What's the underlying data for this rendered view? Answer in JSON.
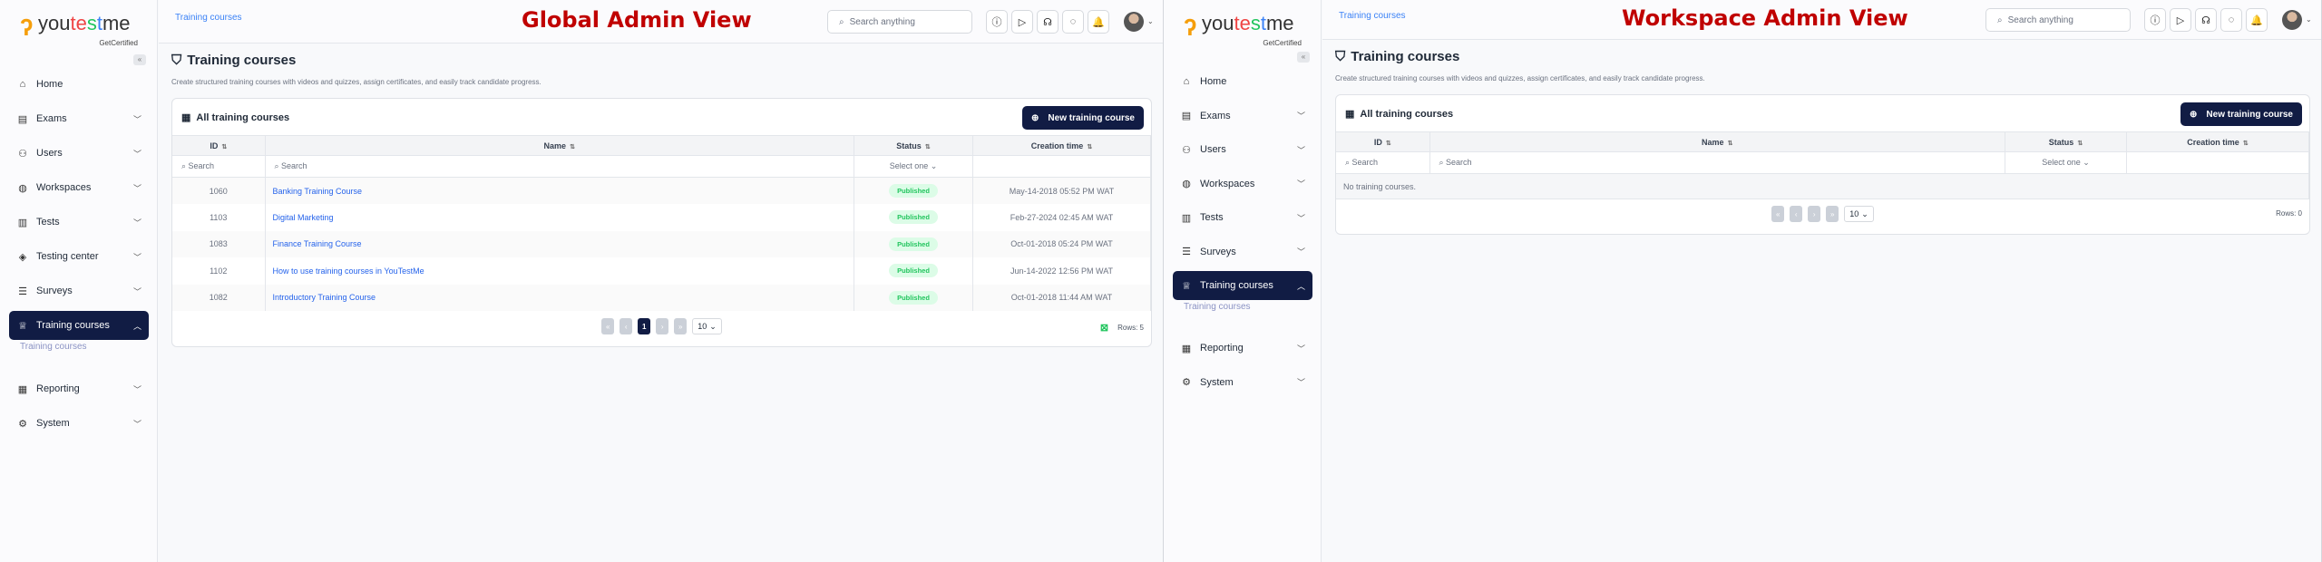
{
  "panels": [
    {
      "view_title": "Global Admin View",
      "breadcrumb": "Training courses",
      "search_placeholder": "Search anything",
      "logo": {
        "text": "youtestme",
        "tagline": "GetCertified"
      },
      "sidebar": {
        "items": [
          {
            "label": "Home",
            "icon": "home-icon",
            "glyph": "⌂",
            "chevron": ""
          },
          {
            "label": "Exams",
            "icon": "document-icon",
            "glyph": "▤",
            "chevron": "⌄"
          },
          {
            "label": "Users",
            "icon": "users-icon",
            "glyph": "⚇",
            "chevron": "⌄"
          },
          {
            "label": "Workspaces",
            "icon": "globe-icon",
            "glyph": "◍",
            "chevron": "⌄"
          },
          {
            "label": "Tests",
            "icon": "test-icon",
            "glyph": "▥",
            "chevron": "⌄"
          },
          {
            "label": "Testing center",
            "icon": "graduation-cap-icon",
            "glyph": "◈",
            "chevron": "⌄"
          },
          {
            "label": "Surveys",
            "icon": "list-icon",
            "glyph": "☰",
            "chevron": "⌄"
          },
          {
            "label": "Training courses",
            "icon": "trophy-icon",
            "glyph": "♕",
            "chevron": "⌃",
            "active": true,
            "sub": "Training courses"
          },
          {
            "label": "Reporting",
            "icon": "report-icon",
            "glyph": "▦",
            "chevron": "⌄"
          },
          {
            "label": "System",
            "icon": "gear-icon",
            "glyph": "⚙",
            "chevron": "⌄"
          }
        ]
      },
      "page_title": "Training courses",
      "description": "Create structured training courses with videos and quizzes, assign certificates, and easily track candidate progress.",
      "card_title": "All training courses",
      "new_button": "New training course",
      "columns": [
        "ID",
        "Name",
        "Status",
        "Creation time"
      ],
      "filter": {
        "search": "Search",
        "status": "Select one"
      },
      "rows": [
        {
          "id": "1060",
          "name": "Banking Training Course",
          "status": "Published",
          "created": "May-14-2018 05:52 PM WAT"
        },
        {
          "id": "1103",
          "name": "Digital Marketing",
          "status": "Published",
          "created": "Feb-27-2024 02:45 AM WAT"
        },
        {
          "id": "1083",
          "name": "Finance Training Course",
          "status": "Published",
          "created": "Oct-01-2018 05:24 PM WAT"
        },
        {
          "id": "1102",
          "name": "How to use training courses in YouTestMe",
          "status": "Published",
          "created": "Jun-14-2022 12:56 PM WAT"
        },
        {
          "id": "1082",
          "name": "Introductory Training Course",
          "status": "Published",
          "created": "Oct-01-2018 11:44 AM WAT"
        }
      ],
      "empty_message": "",
      "pagination": {
        "current_page": "1",
        "page_size": "10",
        "rows_label": "Rows: 5"
      }
    },
    {
      "view_title": "Workspace Admin View",
      "breadcrumb": "Training courses",
      "search_placeholder": "Search anything",
      "logo": {
        "text": "youtestme",
        "tagline": "GetCertified"
      },
      "sidebar": {
        "items": [
          {
            "label": "Home",
            "icon": "home-icon",
            "glyph": "⌂",
            "chevron": ""
          },
          {
            "label": "Exams",
            "icon": "document-icon",
            "glyph": "▤",
            "chevron": "⌄"
          },
          {
            "label": "Users",
            "icon": "users-icon",
            "glyph": "⚇",
            "chevron": "⌄"
          },
          {
            "label": "Workspaces",
            "icon": "globe-icon",
            "glyph": "◍",
            "chevron": "⌄"
          },
          {
            "label": "Tests",
            "icon": "test-icon",
            "glyph": "▥",
            "chevron": "⌄"
          },
          {
            "label": "Surveys",
            "icon": "list-icon",
            "glyph": "☰",
            "chevron": "⌄"
          },
          {
            "label": "Training courses",
            "icon": "trophy-icon",
            "glyph": "♕",
            "chevron": "⌃",
            "active": true,
            "sub": "Training courses"
          },
          {
            "label": "Reporting",
            "icon": "report-icon",
            "glyph": "▦",
            "chevron": "⌄"
          },
          {
            "label": "System",
            "icon": "gear-icon",
            "glyph": "⚙",
            "chevron": "⌄"
          }
        ]
      },
      "page_title": "Training courses",
      "description": "Create structured training courses with videos and quizzes, assign certificates, and easily track candidate progress.",
      "card_title": "All training courses",
      "new_button": "New training course",
      "columns": [
        "ID",
        "Name",
        "Status",
        "Creation time"
      ],
      "filter": {
        "search": "Search",
        "status": "Select one"
      },
      "rows": [],
      "empty_message": "No training courses.",
      "pagination": {
        "current_page": "",
        "page_size": "10",
        "rows_label": "Rows: 0"
      }
    }
  ],
  "colors": {
    "accent": "#111c44",
    "link": "#2563eb",
    "view_title": "#c00000",
    "published": "#22c55e"
  },
  "topbar_icons": [
    "help-icon",
    "play-icon",
    "headset-icon",
    "chat-icon",
    "bell-icon"
  ]
}
